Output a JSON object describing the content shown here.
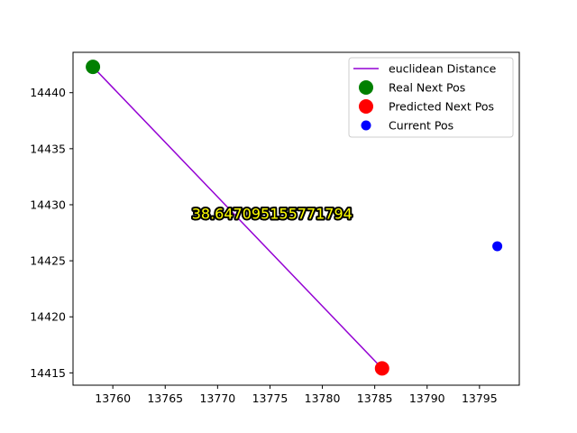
{
  "chart_data": {
    "type": "scatter",
    "title": "",
    "xlabel": "",
    "ylabel": "",
    "xlim": [
      13756.2,
      13798.8
    ],
    "ylim": [
      14413.9,
      14443.6
    ],
    "xticks": [
      13760,
      13765,
      13770,
      13775,
      13780,
      13785,
      13790,
      13795
    ],
    "yticks": [
      14415,
      14420,
      14425,
      14430,
      14435,
      14440
    ],
    "xtick_labels": [
      "13760",
      "13765",
      "13770",
      "13775",
      "13780",
      "13785",
      "13790",
      "13795"
    ],
    "ytick_labels": [
      "14415",
      "14420",
      "14425",
      "14430",
      "14435",
      "14440"
    ],
    "grid": false,
    "legend_position": "top-right",
    "series": [
      {
        "name": "euclidean Distance",
        "kind": "line",
        "color": "#9400d3",
        "points": [
          [
            13758.1,
            14442.3
          ],
          [
            13785.7,
            14415.4
          ]
        ]
      },
      {
        "name": "Real Next Pos",
        "kind": "scatter",
        "color": "#008000",
        "marker_size": "large",
        "points": [
          [
            13758.1,
            14442.3
          ]
        ]
      },
      {
        "name": "Predicted Next Pos",
        "kind": "scatter",
        "color": "#ff0000",
        "marker_size": "large",
        "points": [
          [
            13785.7,
            14415.4
          ]
        ]
      },
      {
        "name": "Current Pos",
        "kind": "scatter",
        "color": "#0000ff",
        "marker_size": "small",
        "points": [
          [
            13796.7,
            14426.3
          ]
        ]
      }
    ],
    "annotations": [
      {
        "text": "38.647095155771794",
        "x": 13775.2,
        "y": 14429.2,
        "color": "#ffff00",
        "outline": "#000000"
      }
    ]
  }
}
